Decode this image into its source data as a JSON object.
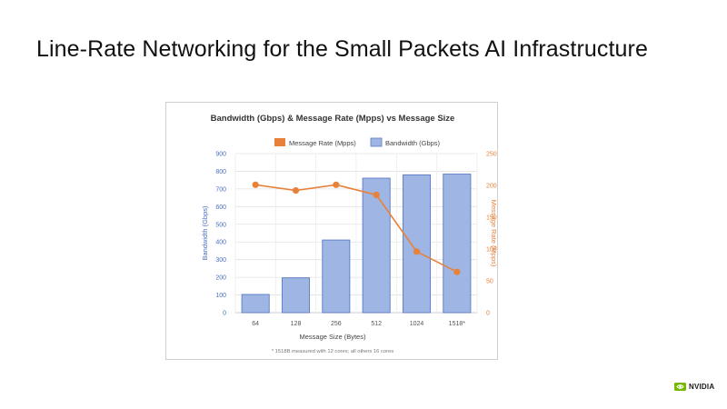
{
  "slide": {
    "title": "Line-Rate Networking for the Small Packets AI Infrastructure",
    "logo_text": "NVIDIA"
  },
  "colors": {
    "bar_fill": "#9fb5e3",
    "bar_stroke": "#5b7bc4",
    "line": "#e8823a",
    "left_axis": "#4a6fc0",
    "right_axis": "#e8823a",
    "brand": "#76b900"
  },
  "chart_data": {
    "type": "bar+line",
    "title": "Bandwidth (Gbps) & Message Rate (Mpps) vs Message Size",
    "categories": [
      "64",
      "128",
      "256",
      "512",
      "1024",
      "1518*"
    ],
    "xlabel": "Message Size (Bytes)",
    "ylabel_left": "Bandwidth (Gbps)",
    "ylabel_right": "Message Rate (Mpps)",
    "ylim_left": [
      0,
      900
    ],
    "yticks_left": [
      0,
      100,
      200,
      300,
      400,
      500,
      600,
      700,
      800,
      900
    ],
    "ylim_right": [
      0,
      250
    ],
    "yticks_right": [
      0,
      50,
      100,
      150,
      200,
      250
    ],
    "legend_position": "top-center",
    "grid": true,
    "series": [
      {
        "name": "Message Rate (Mpps)",
        "kind": "line",
        "axis": "right",
        "values": [
          201,
          192,
          201,
          185,
          96,
          64
        ]
      },
      {
        "name": "Bandwidth (Gbps)",
        "kind": "bar",
        "axis": "left",
        "values": [
          103,
          197,
          411,
          761,
          780,
          784
        ]
      }
    ],
    "footnote": "* 1518B measured with 12 cores; all others 16 cores"
  }
}
